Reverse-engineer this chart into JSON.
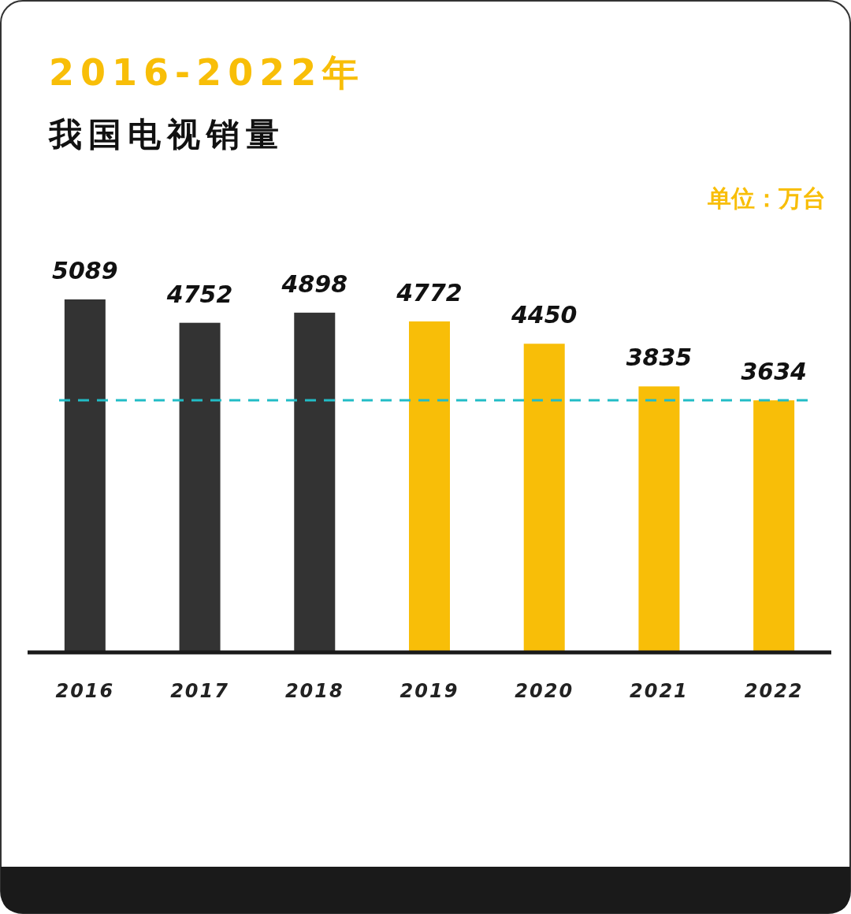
{
  "chart_data": {
    "type": "bar",
    "title": "2016-2022年",
    "subtitle": "我国电视销量",
    "annotations": [
      "单位：万台"
    ],
    "categories": [
      "2016",
      "2017",
      "2018",
      "2019",
      "2020",
      "2021",
      "2022"
    ],
    "values": [
      5089,
      4752,
      4898,
      4772,
      4450,
      3835,
      3634
    ],
    "colors": [
      "#333333",
      "#333333",
      "#333333",
      "#f8be08",
      "#f8be08",
      "#f8be08",
      "#f8be08"
    ],
    "data_labels": true,
    "ref_lines": [
      {
        "axis": "y",
        "value": 3634,
        "color": "#22bcc6",
        "line_style": "dashed"
      }
    ]
  }
}
